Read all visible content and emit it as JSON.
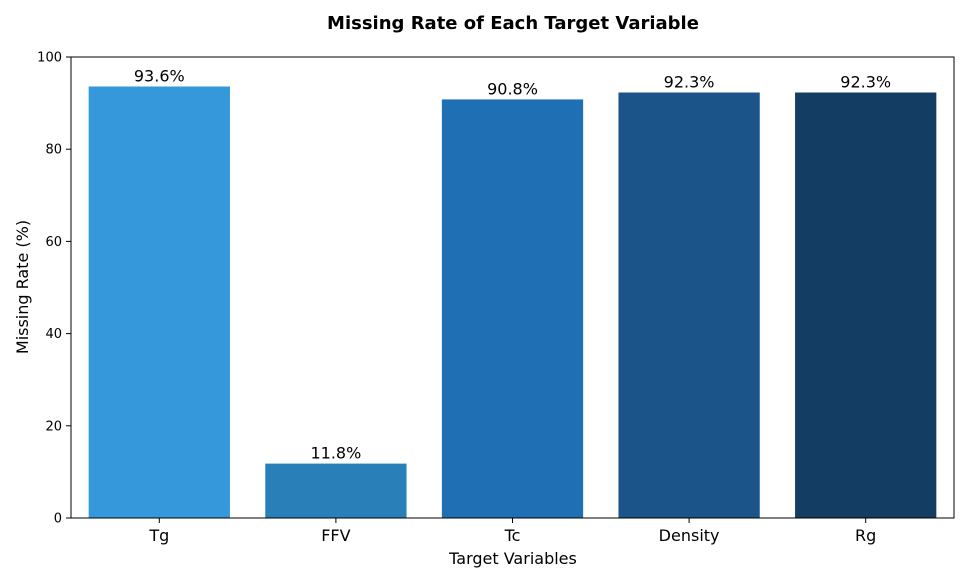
{
  "chart_data": {
    "type": "bar",
    "title": "Missing Rate of Each Target Variable",
    "xlabel": "Target Variables",
    "ylabel": "Missing Rate (%)",
    "categories": [
      "Tg",
      "FFV",
      "Tc",
      "Density",
      "Rg"
    ],
    "values": [
      93.6,
      11.8,
      90.8,
      92.3,
      92.3
    ],
    "data_labels": [
      "93.6%",
      "11.8%",
      "90.8%",
      "92.3%",
      "92.3%"
    ],
    "colors": [
      "#3498db",
      "#2980b9",
      "#1f6fb5",
      "#1a5489",
      "#143d63"
    ],
    "ylim": [
      0,
      100
    ],
    "yticks": [
      0,
      20,
      40,
      60,
      80,
      100
    ],
    "grid": false,
    "legend": "none"
  }
}
